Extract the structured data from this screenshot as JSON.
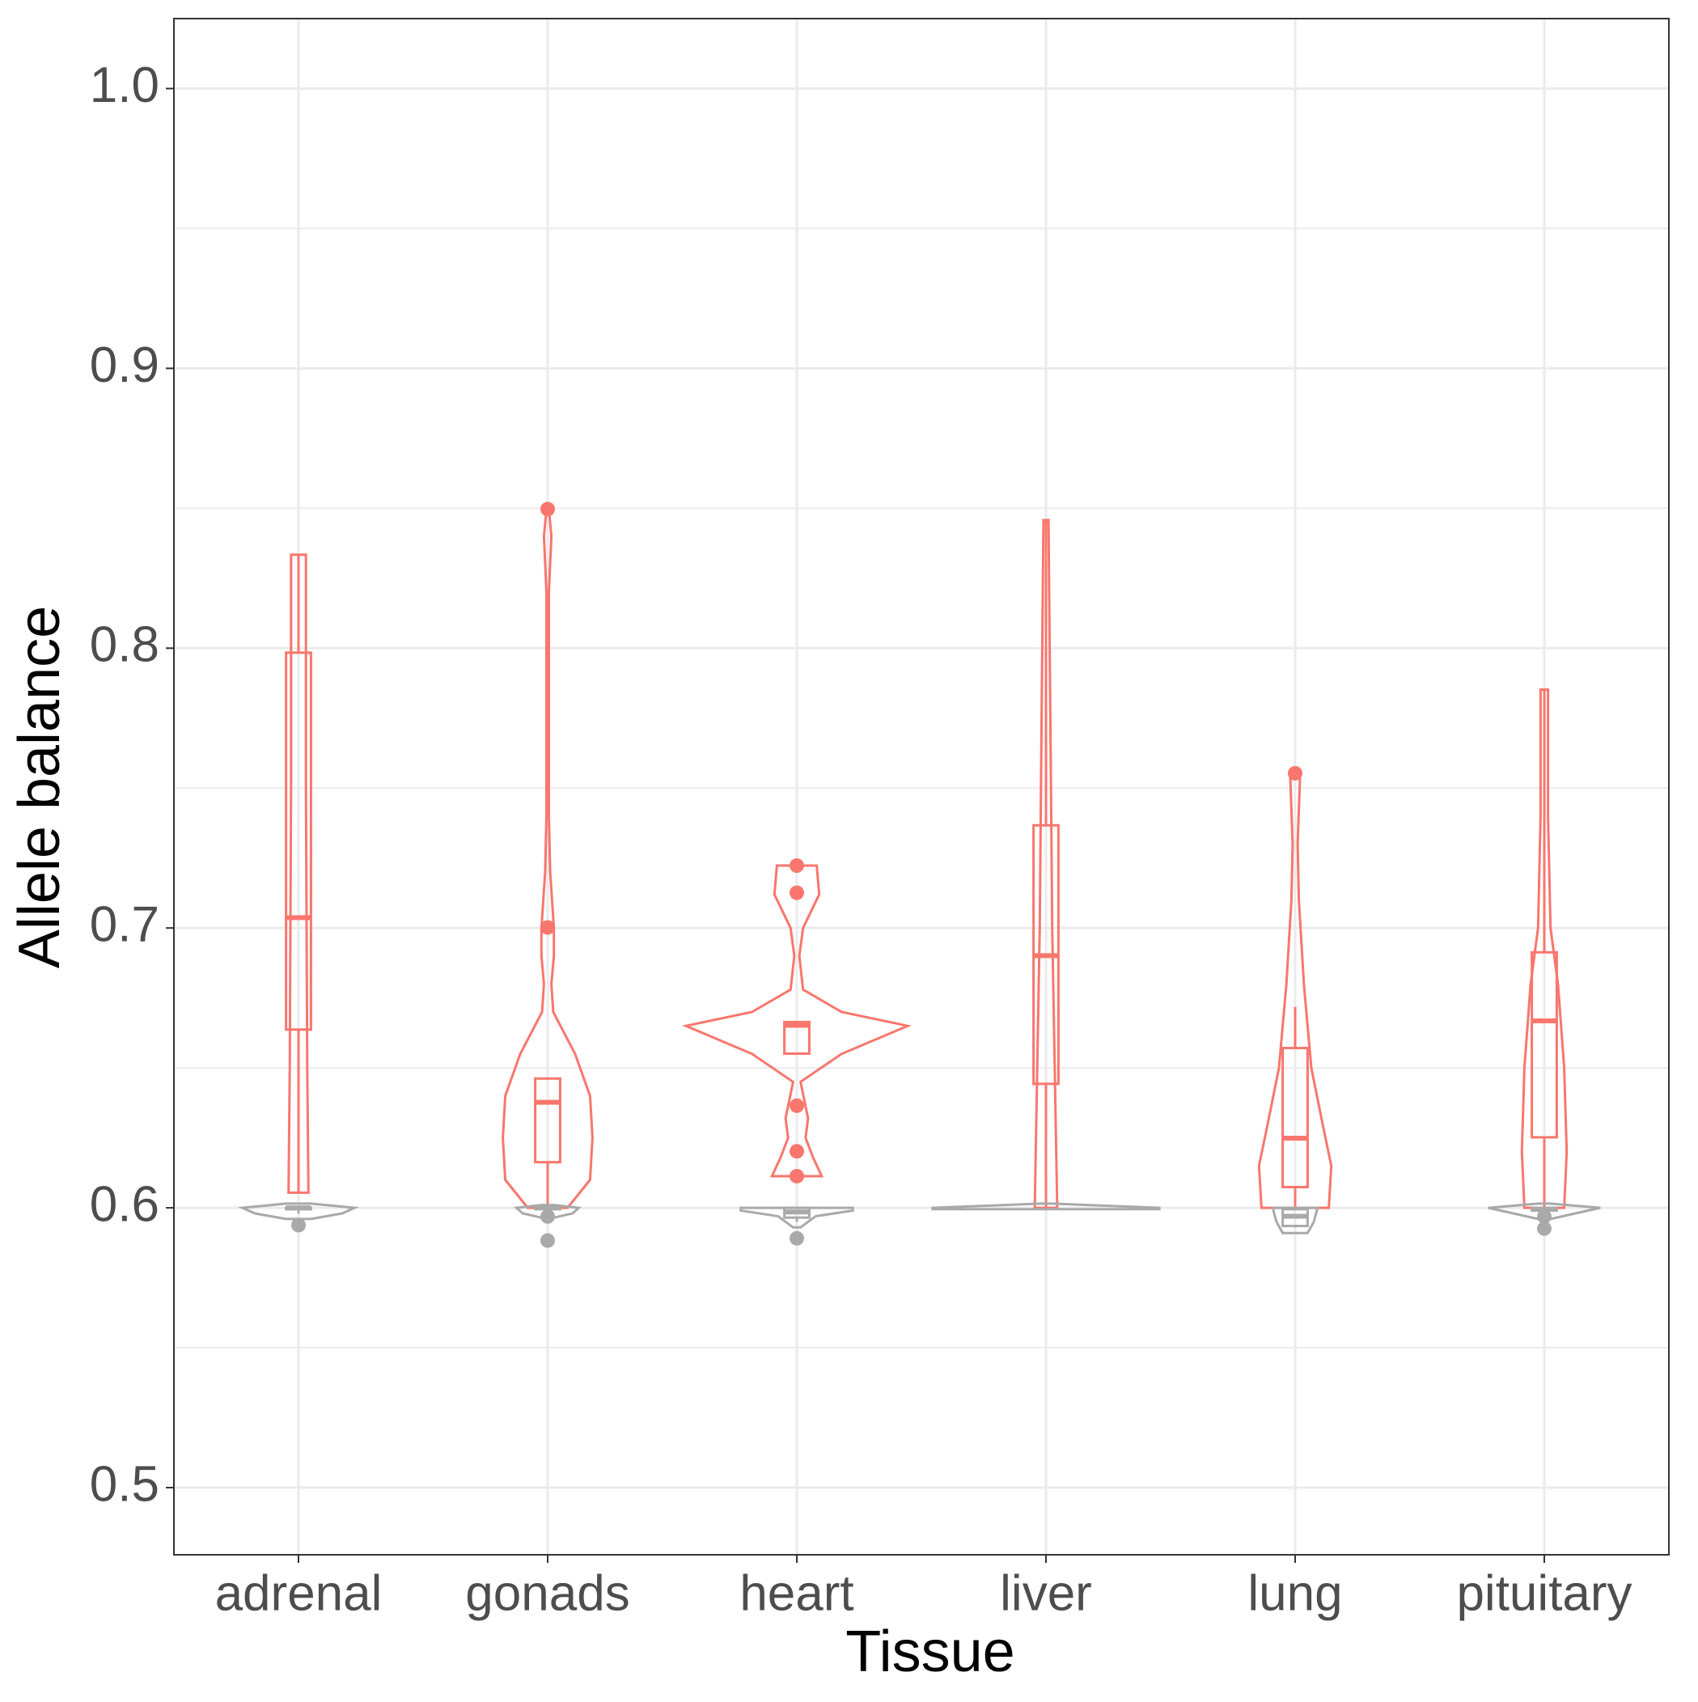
{
  "chart_data": {
    "type": "violin",
    "x_label": "Tissue",
    "y_label": "Allele balance",
    "categories": [
      "adrenal",
      "gonads",
      "heart",
      "liver",
      "lung",
      "pituitary"
    ],
    "ylim": [
      0.476,
      1.025
    ],
    "yticks": [
      0.5,
      0.6,
      0.7,
      0.8,
      0.9,
      {
        "value": 1.0,
        "label": "1.0"
      }
    ],
    "y_minor_grid": [
      0.55,
      0.65,
      0.75,
      0.85,
      0.95
    ],
    "grid": true,
    "series": [
      {
        "color": "#f8766d",
        "boxes": [
          {
            "whisker_low": 0.6054,
            "q1": 0.6637,
            "median": 0.7037,
            "q3": 0.7984,
            "whisker_high": 0.8334
          },
          {
            "whisker_low": 0.6,
            "q1": 0.6163,
            "median": 0.6377,
            "q3": 0.6462,
            "whisker_high": 0.6462
          },
          {
            "whisker_low": 0.655,
            "q1": 0.6551,
            "median": 0.6652,
            "q3": 0.6664,
            "whisker_high": 0.6664
          },
          {
            "whisker_low": 0.6,
            "q1": 0.6443,
            "median": 0.6901,
            "q3": 0.7367,
            "whisker_high": 0.8458
          },
          {
            "whisker_low": 0.6,
            "q1": 0.6074,
            "median": 0.6249,
            "q3": 0.6571,
            "whisker_high": 0.6718
          },
          {
            "whisker_low": 0.6,
            "q1": 0.6252,
            "median": 0.6668,
            "q3": 0.6913,
            "whisker_high": 0.7852
          }
        ],
        "outliers": [
          [],
          [
            0.8497,
            0.7002
          ],
          [
            0.7223,
            0.7126,
            0.6365,
            0.6202,
            0.6113
          ],
          [],
          [
            0.7553
          ],
          []
        ],
        "violins": [
          {
            "y": [
              0.6054,
              0.65,
              0.75,
              0.8334
            ],
            "width": [
              0.08,
              0.07,
              0.06,
              0.06
            ]
          },
          {
            "y": [
              0.6,
              0.61,
              0.625,
              0.64,
              0.655,
              0.67,
              0.68,
              0.69,
              0.7,
              0.71,
              0.72,
              0.74,
              0.82,
              0.84,
              0.8497
            ],
            "width": [
              0.16,
              0.34,
              0.36,
              0.34,
              0.22,
              0.045,
              0.03,
              0.05,
              0.05,
              0.035,
              0.02,
              0.01,
              0.01,
              0.03,
              0.01
            ]
          },
          {
            "y": [
              0.6113,
              0.618,
              0.625,
              0.632,
              0.645,
              0.655,
              0.665,
              0.67,
              0.678,
              0.69,
              0.7,
              0.712,
              0.7223
            ],
            "width": [
              0.2,
              0.13,
              0.07,
              0.09,
              0.03,
              0.36,
              0.89,
              0.36,
              0.05,
              0.02,
              0.05,
              0.18,
              0.16
            ]
          },
          {
            "y": [
              0.6,
              0.65,
              0.7,
              0.75,
              0.8,
              0.8458
            ],
            "width": [
              0.09,
              0.07,
              0.05,
              0.04,
              0.03,
              0.02
            ]
          },
          {
            "y": [
              0.6,
              0.615,
              0.63,
              0.65,
              0.68,
              0.71,
              0.73,
              0.7553
            ],
            "width": [
              0.27,
              0.29,
              0.22,
              0.13,
              0.07,
              0.03,
              0.02,
              0.04
            ]
          },
          {
            "y": [
              0.6,
              0.62,
              0.65,
              0.68,
              0.7,
              0.74,
              0.7852
            ],
            "width": [
              0.16,
              0.18,
              0.16,
              0.11,
              0.05,
              0.03,
              0.03
            ]
          }
        ]
      },
      {
        "color": "#a9a9a9",
        "boxes": [
          {
            "whisker_low": 0.598,
            "q1": 0.5995,
            "median": 0.6,
            "q3": 0.6,
            "whisker_high": 0.6
          },
          {
            "whisker_low": 0.5985,
            "q1": 0.5995,
            "median": 0.6,
            "q3": 0.6,
            "whisker_high": 0.6
          },
          {
            "whisker_low": 0.595,
            "q1": 0.5965,
            "median": 0.5985,
            "q3": 0.6,
            "whisker_high": 0.6
          },
          null,
          {
            "whisker_low": 0.593,
            "q1": 0.5935,
            "median": 0.597,
            "q3": 0.5995,
            "whisker_high": 0.6
          },
          {
            "whisker_low": 0.5975,
            "q1": 0.599,
            "median": 0.5995,
            "q3": 0.6,
            "whisker_high": 0.6
          }
        ],
        "outliers": [
          [
            0.5938
          ],
          [
            0.5969,
            0.5883
          ],
          [
            0.5891
          ],
          [],
          [],
          [
            0.5969,
            0.5926
          ]
        ],
        "violins": [
          {
            "y": [
              0.596,
              0.598,
              0.6,
              0.6015
            ],
            "width": [
              0.1,
              0.35,
              0.45,
              0.1
            ]
          },
          {
            "y": [
              0.5965,
              0.598,
              0.6,
              0.601
            ],
            "width": [
              0.05,
              0.2,
              0.25,
              0.05
            ]
          },
          {
            "y": [
              0.593,
              0.597,
              0.599,
              0.6
            ],
            "width": [
              0.03,
              0.15,
              0.45,
              0.45
            ]
          },
          {
            "y": [
              0.5995,
              0.6,
              0.6015
            ],
            "width": [
              0.91,
              0.91,
              0.05
            ]
          },
          {
            "y": [
              0.591,
              0.595,
              0.6
            ],
            "width": [
              0.1,
              0.15,
              0.18
            ]
          },
          {
            "y": [
              0.596,
              0.599,
              0.6,
              0.6015
            ],
            "width": [
              0.05,
              0.35,
              0.45,
              0.05
            ]
          }
        ]
      }
    ]
  }
}
